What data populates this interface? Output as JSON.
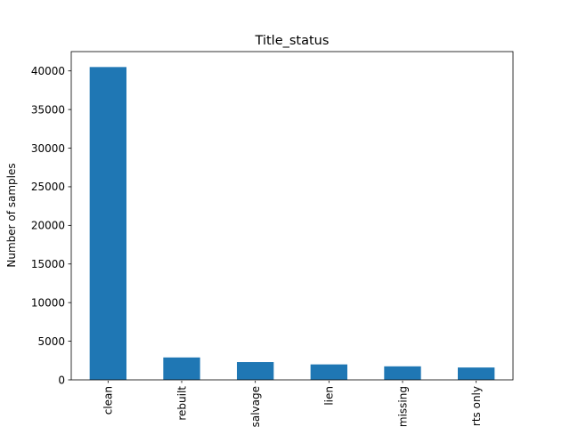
{
  "chart_data": {
    "type": "bar",
    "title": "Title_status",
    "xlabel": "",
    "ylabel": "Number of samples",
    "categories": [
      "clean",
      "rebuilt",
      "salvage",
      "lien",
      "missing",
      "parts only"
    ],
    "values": [
      40500,
      2900,
      2300,
      2000,
      1750,
      1600
    ],
    "ylim": [
      0,
      42500
    ],
    "yticks": [
      0,
      5000,
      10000,
      15000,
      20000,
      25000,
      30000,
      35000,
      40000
    ],
    "ytick_labels": [
      "0",
      "5000",
      "10000",
      "15000",
      "20000",
      "25000",
      "30000",
      "35000",
      "40000"
    ],
    "grid": false,
    "bar_color": "#1f77b4"
  }
}
